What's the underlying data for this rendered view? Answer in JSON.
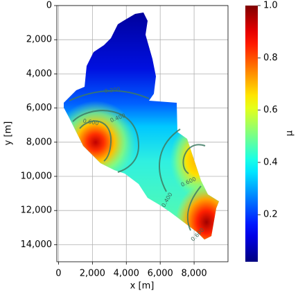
{
  "chart_data": {
    "type": "contour",
    "colormap": "jet",
    "xlabel": "x [m]",
    "ylabel": "y [m]",
    "colorbar_label": "μ",
    "xlim": [
      -100,
      10000
    ],
    "ylim": [
      15000,
      0
    ],
    "xticks": [
      0,
      {
        "value": 2000,
        "label": "2,000"
      },
      {
        "value": 4000,
        "label": "4,000"
      },
      {
        "value": 6000,
        "label": "6,000"
      },
      {
        "value": 8000,
        "label": "8,000"
      }
    ],
    "yticks": [
      0,
      {
        "value": 2000,
        "label": "2,000"
      },
      {
        "value": 4000,
        "label": "4,000"
      },
      {
        "value": 6000,
        "label": "6,000"
      },
      {
        "value": 8000,
        "label": "8,000"
      },
      {
        "value": 10000,
        "label": "10,000"
      },
      {
        "value": 12000,
        "label": "12,000"
      },
      {
        "value": 14000,
        "label": "14,000"
      }
    ],
    "clim": [
      0.02,
      1.0
    ],
    "cticks": [
      0.2,
      0.4,
      0.6,
      0.8,
      {
        "value": 1,
        "label": "1.0"
      }
    ],
    "grid": true,
    "contour_levels": [
      0.2,
      0.4,
      0.6
    ],
    "contour_labels": [
      "0.200",
      "0.400",
      "0.600"
    ]
  }
}
